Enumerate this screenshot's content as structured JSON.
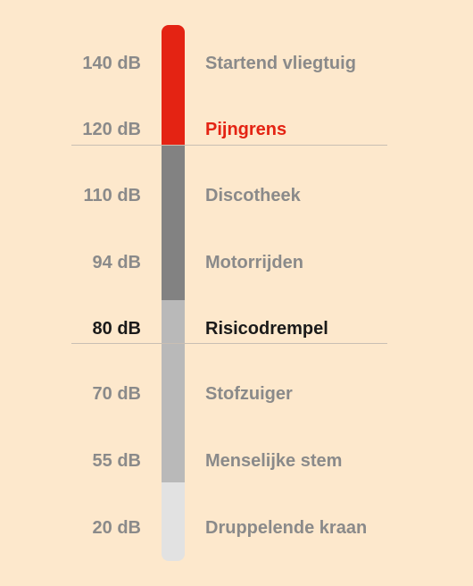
{
  "colors": {
    "background": "#fde8cc",
    "pain": "#e42313",
    "high": "#828282",
    "medium": "#b9b9b9",
    "low": "#e2e2e2",
    "muted_text": "#8a8a8a",
    "strong_text": "#1a1a1a"
  },
  "levels": [
    {
      "db": "140 dB",
      "label": "Startend vliegtuig",
      "style": "muted"
    },
    {
      "db": "120 dB",
      "label": "Pijngrens",
      "style": "pain"
    },
    {
      "db": "110 dB",
      "label": "Discotheek",
      "style": "muted"
    },
    {
      "db": "94 dB",
      "label": "Motorrijden",
      "style": "muted"
    },
    {
      "db": "80 dB",
      "label": "Risicodrempel",
      "style": "strong"
    },
    {
      "db": "70 dB",
      "label": "Stofzuiger",
      "style": "muted"
    },
    {
      "db": "55 dB",
      "label": "Menselijke stem",
      "style": "muted"
    },
    {
      "db": "20 dB",
      "label": "Druppelende kraan",
      "style": "muted"
    }
  ],
  "bar_segments": [
    {
      "name": "pain",
      "from_db": 140,
      "to_db": 120,
      "color_key": "pain"
    },
    {
      "name": "high",
      "from_db": 120,
      "to_db": 94,
      "color_key": "high"
    },
    {
      "name": "medium",
      "from_db": 94,
      "to_db": 55,
      "color_key": "medium"
    },
    {
      "name": "low",
      "from_db": 55,
      "to_db": 20,
      "color_key": "low"
    }
  ],
  "thresholds": [
    "120 dB",
    "80 dB"
  ]
}
